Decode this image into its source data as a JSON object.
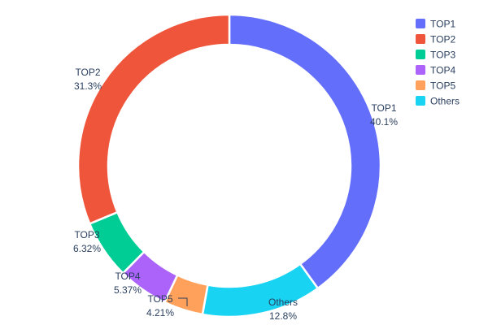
{
  "chart_data": {
    "type": "pie",
    "subtype": "donut",
    "title": "",
    "hole": 0.8,
    "labels": [
      "TOP1",
      "TOP2",
      "TOP3",
      "TOP4",
      "TOP5",
      "Others"
    ],
    "values": [
      40.1,
      31.3,
      6.32,
      5.37,
      4.21,
      12.8
    ],
    "percent_labels": [
      "40.1%",
      "31.3%",
      "6.32%",
      "5.37%",
      "4.21%",
      "12.8%"
    ],
    "colors": [
      "#636EFA",
      "#EF553B",
      "#00CC96",
      "#AB63FA",
      "#FFA15A",
      "#19D3F3"
    ],
    "clockwise_order": [
      "TOP1",
      "Others",
      "TOP5",
      "TOP4",
      "TOP3",
      "TOP2"
    ],
    "legend": {
      "position": "top-right",
      "entries": [
        "TOP1",
        "TOP2",
        "TOP3",
        "TOP4",
        "TOP5",
        "Others"
      ]
    },
    "text_color": "#2a3f5f",
    "background": "#ffffff",
    "slice_border_color": "#ffffff"
  }
}
